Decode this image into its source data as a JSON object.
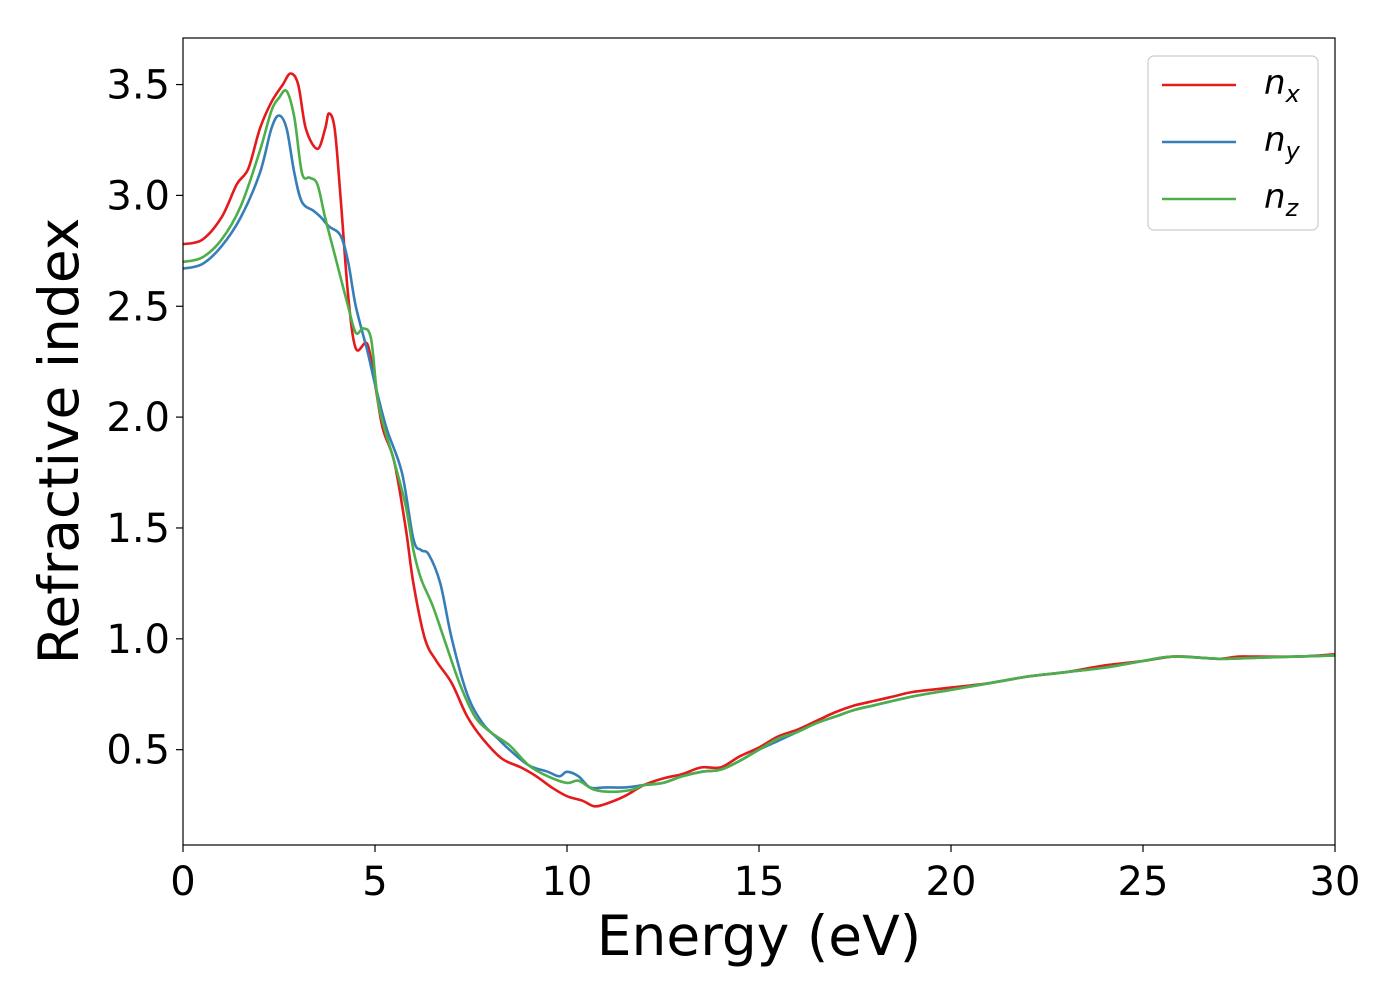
{
  "chart_data": {
    "type": "line",
    "title": "",
    "xlabel": "Energy (eV)",
    "ylabel": "Refractive index",
    "xlim": [
      0,
      30
    ],
    "ylim": [
      0.07,
      3.71
    ],
    "x_ticks": [
      0,
      5,
      10,
      15,
      20,
      25,
      30
    ],
    "y_ticks": [
      0.5,
      1.0,
      1.5,
      2.0,
      2.5,
      3.0,
      3.5
    ],
    "x_tick_labels": [
      "0",
      "5",
      "10",
      "15",
      "20",
      "25",
      "30"
    ],
    "y_tick_labels": [
      "0.5",
      "1.0",
      "1.5",
      "2.0",
      "2.5",
      "3.0",
      "3.5"
    ],
    "grid": false,
    "legend_position": "top-right",
    "series": [
      {
        "name": "n_x",
        "legend_base": "n",
        "legend_sub": "x",
        "color": "#e41a1c",
        "points": [
          [
            0,
            2.78
          ],
          [
            0.5,
            2.8
          ],
          [
            1.0,
            2.9
          ],
          [
            1.4,
            3.05
          ],
          [
            1.7,
            3.12
          ],
          [
            2.0,
            3.3
          ],
          [
            2.3,
            3.42
          ],
          [
            2.6,
            3.5
          ],
          [
            2.8,
            3.55
          ],
          [
            3.0,
            3.5
          ],
          [
            3.2,
            3.3
          ],
          [
            3.5,
            3.21
          ],
          [
            3.7,
            3.3
          ],
          [
            3.8,
            3.37
          ],
          [
            3.95,
            3.3
          ],
          [
            4.1,
            3.0
          ],
          [
            4.3,
            2.55
          ],
          [
            4.5,
            2.31
          ],
          [
            4.8,
            2.33
          ],
          [
            5.0,
            2.15
          ],
          [
            5.2,
            1.95
          ],
          [
            5.5,
            1.8
          ],
          [
            5.8,
            1.5
          ],
          [
            6.0,
            1.25
          ],
          [
            6.3,
            1.0
          ],
          [
            6.6,
            0.9
          ],
          [
            7.0,
            0.8
          ],
          [
            7.4,
            0.65
          ],
          [
            7.8,
            0.55
          ],
          [
            8.3,
            0.46
          ],
          [
            8.8,
            0.42
          ],
          [
            9.2,
            0.38
          ],
          [
            9.6,
            0.33
          ],
          [
            10.0,
            0.29
          ],
          [
            10.4,
            0.27
          ],
          [
            10.7,
            0.245
          ],
          [
            11.0,
            0.255
          ],
          [
            11.5,
            0.29
          ],
          [
            12.0,
            0.34
          ],
          [
            12.5,
            0.37
          ],
          [
            13.0,
            0.39
          ],
          [
            13.5,
            0.42
          ],
          [
            14.0,
            0.42
          ],
          [
            14.5,
            0.47
          ],
          [
            15.0,
            0.51
          ],
          [
            15.5,
            0.56
          ],
          [
            16.0,
            0.59
          ],
          [
            16.5,
            0.63
          ],
          [
            17.0,
            0.67
          ],
          [
            17.5,
            0.7
          ],
          [
            18.0,
            0.72
          ],
          [
            18.5,
            0.74
          ],
          [
            19.0,
            0.76
          ],
          [
            20.0,
            0.78
          ],
          [
            21.0,
            0.8
          ],
          [
            22.0,
            0.83
          ],
          [
            23.0,
            0.85
          ],
          [
            24.0,
            0.88
          ],
          [
            25.0,
            0.9
          ],
          [
            25.8,
            0.92
          ],
          [
            26.5,
            0.915
          ],
          [
            27.0,
            0.91
          ],
          [
            27.5,
            0.92
          ],
          [
            28.0,
            0.92
          ],
          [
            29.0,
            0.92
          ],
          [
            30.0,
            0.93
          ]
        ]
      },
      {
        "name": "n_y",
        "legend_base": "n",
        "legend_sub": "y",
        "color": "#377eb8",
        "points": [
          [
            0,
            2.67
          ],
          [
            0.5,
            2.69
          ],
          [
            1.0,
            2.77
          ],
          [
            1.5,
            2.9
          ],
          [
            2.0,
            3.1
          ],
          [
            2.3,
            3.3
          ],
          [
            2.5,
            3.36
          ],
          [
            2.7,
            3.3
          ],
          [
            2.9,
            3.1
          ],
          [
            3.1,
            2.97
          ],
          [
            3.4,
            2.93
          ],
          [
            3.6,
            2.9
          ],
          [
            3.8,
            2.86
          ],
          [
            4.1,
            2.82
          ],
          [
            4.3,
            2.7
          ],
          [
            4.5,
            2.5
          ],
          [
            4.8,
            2.3
          ],
          [
            5.0,
            2.15
          ],
          [
            5.3,
            1.95
          ],
          [
            5.7,
            1.75
          ],
          [
            6.0,
            1.45
          ],
          [
            6.2,
            1.4
          ],
          [
            6.4,
            1.38
          ],
          [
            6.7,
            1.25
          ],
          [
            7.0,
            1.0
          ],
          [
            7.4,
            0.75
          ],
          [
            7.8,
            0.62
          ],
          [
            8.2,
            0.55
          ],
          [
            8.5,
            0.5
          ],
          [
            9.0,
            0.43
          ],
          [
            9.5,
            0.4
          ],
          [
            9.8,
            0.38
          ],
          [
            10.0,
            0.4
          ],
          [
            10.3,
            0.38
          ],
          [
            10.6,
            0.33
          ],
          [
            11.0,
            0.33
          ],
          [
            11.5,
            0.33
          ],
          [
            12.0,
            0.34
          ],
          [
            12.5,
            0.35
          ],
          [
            13.0,
            0.38
          ],
          [
            13.5,
            0.4
          ],
          [
            14.0,
            0.41
          ],
          [
            14.5,
            0.45
          ],
          [
            15.0,
            0.5
          ],
          [
            15.5,
            0.54
          ],
          [
            16.0,
            0.58
          ],
          [
            16.5,
            0.62
          ],
          [
            17.0,
            0.65
          ],
          [
            17.5,
            0.68
          ],
          [
            18.0,
            0.7
          ],
          [
            19.0,
            0.74
          ],
          [
            20.0,
            0.77
          ],
          [
            21.0,
            0.8
          ],
          [
            22.0,
            0.83
          ],
          [
            23.0,
            0.85
          ],
          [
            24.0,
            0.87
          ],
          [
            25.0,
            0.9
          ],
          [
            25.8,
            0.92
          ],
          [
            27.0,
            0.91
          ],
          [
            28.0,
            0.915
          ],
          [
            29.0,
            0.92
          ],
          [
            30.0,
            0.925
          ]
        ]
      },
      {
        "name": "n_z",
        "legend_base": "n",
        "legend_sub": "z",
        "color": "#4daf4a",
        "points": [
          [
            0,
            2.7
          ],
          [
            0.5,
            2.72
          ],
          [
            1.0,
            2.8
          ],
          [
            1.5,
            2.95
          ],
          [
            2.0,
            3.2
          ],
          [
            2.3,
            3.38
          ],
          [
            2.5,
            3.44
          ],
          [
            2.7,
            3.47
          ],
          [
            2.9,
            3.35
          ],
          [
            3.1,
            3.1
          ],
          [
            3.3,
            3.08
          ],
          [
            3.5,
            3.05
          ],
          [
            3.7,
            2.9
          ],
          [
            4.0,
            2.7
          ],
          [
            4.3,
            2.5
          ],
          [
            4.5,
            2.38
          ],
          [
            4.7,
            2.4
          ],
          [
            4.9,
            2.35
          ],
          [
            5.1,
            2.05
          ],
          [
            5.5,
            1.8
          ],
          [
            5.8,
            1.6
          ],
          [
            6.0,
            1.4
          ],
          [
            6.2,
            1.27
          ],
          [
            6.5,
            1.15
          ],
          [
            6.8,
            1.0
          ],
          [
            7.2,
            0.8
          ],
          [
            7.6,
            0.65
          ],
          [
            8.0,
            0.58
          ],
          [
            8.5,
            0.52
          ],
          [
            9.0,
            0.43
          ],
          [
            9.5,
            0.38
          ],
          [
            10.0,
            0.35
          ],
          [
            10.3,
            0.36
          ],
          [
            10.7,
            0.32
          ],
          [
            11.2,
            0.31
          ],
          [
            11.7,
            0.32
          ],
          [
            12.0,
            0.34
          ],
          [
            12.5,
            0.35
          ],
          [
            13.0,
            0.38
          ],
          [
            13.5,
            0.4
          ],
          [
            14.0,
            0.41
          ],
          [
            14.5,
            0.45
          ],
          [
            15.0,
            0.5
          ],
          [
            15.5,
            0.55
          ],
          [
            16.0,
            0.58
          ],
          [
            16.5,
            0.62
          ],
          [
            17.0,
            0.65
          ],
          [
            17.5,
            0.68
          ],
          [
            18.0,
            0.7
          ],
          [
            19.0,
            0.74
          ],
          [
            20.0,
            0.77
          ],
          [
            21.0,
            0.8
          ],
          [
            22.0,
            0.83
          ],
          [
            23.0,
            0.85
          ],
          [
            24.0,
            0.87
          ],
          [
            25.0,
            0.9
          ],
          [
            25.8,
            0.92
          ],
          [
            27.0,
            0.91
          ],
          [
            28.0,
            0.915
          ],
          [
            29.0,
            0.92
          ],
          [
            30.0,
            0.925
          ]
        ]
      }
    ]
  }
}
